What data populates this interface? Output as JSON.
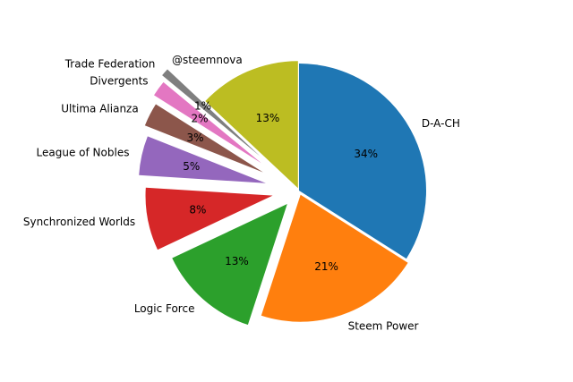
{
  "chart_data": {
    "type": "pie",
    "title": "",
    "start_angle_deg": 90,
    "direction": "clockwise",
    "exploded": true,
    "legend": "none",
    "slices": [
      {
        "label": "D-A-CH",
        "value": 34,
        "pct_label": "34%",
        "color": "#1f77b4"
      },
      {
        "label": "Steem Power",
        "value": 21,
        "pct_label": "21%",
        "color": "#ff7f0e"
      },
      {
        "label": "Logic Force",
        "value": 13,
        "pct_label": "13%",
        "color": "#2ca02c"
      },
      {
        "label": "Synchronized Worlds",
        "value": 8,
        "pct_label": "8%",
        "color": "#d62728"
      },
      {
        "label": "League of Nobles",
        "value": 5,
        "pct_label": "5%",
        "color": "#9467bd"
      },
      {
        "label": "Ultima Alianza",
        "value": 3,
        "pct_label": "3%",
        "color": "#8c564b"
      },
      {
        "label": "Divergents",
        "value": 2,
        "pct_label": "2%",
        "color": "#e377c2"
      },
      {
        "label": "Trade Federation",
        "value": 1,
        "pct_label": "1%",
        "color": "#7f7f7f"
      },
      {
        "label": "@steemnova",
        "value": 13,
        "pct_label": "13%",
        "color": "#bcbd22"
      }
    ]
  }
}
